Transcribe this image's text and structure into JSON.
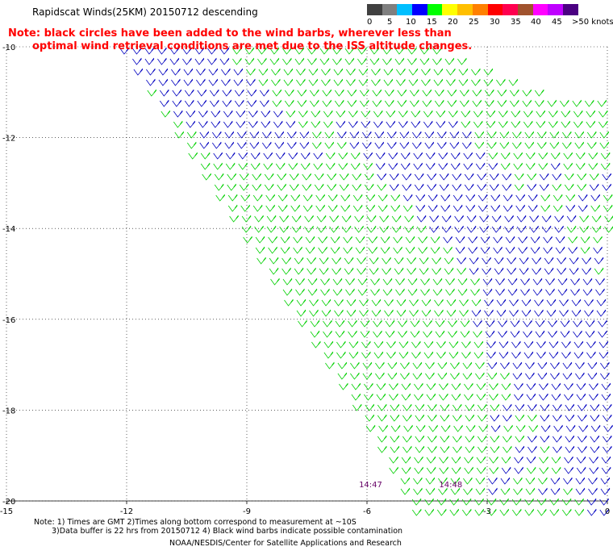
{
  "header": {
    "title": "Rapidscat Winds(25KM) 20150712 descending",
    "note_line1": "Note: black circles have been added to the wind barbs, wherever less than",
    "note_line2": "optimal wind retrieval conditions are met due to the ISS altitude changes."
  },
  "legend": {
    "colors": [
      "#404040",
      "#7f7f7f",
      "#00bfff",
      "#0000ff",
      "#00ff00",
      "#ffff00",
      "#ffbf00",
      "#ff8000",
      "#ff0000",
      "#ff004f",
      "#a0522d",
      "#ff00ff",
      "#bf00ff",
      "#4b0082"
    ],
    "labels": [
      "0",
      "5",
      "10",
      "15",
      "20",
      "25",
      "30",
      "35",
      "40",
      "45",
      ">50 knots"
    ]
  },
  "map": {
    "x_ticks": [
      "-15",
      "-12",
      "-9",
      "-6",
      "-3",
      "0"
    ],
    "x_values": [
      -15,
      -12,
      -9,
      -6,
      -3,
      0
    ],
    "y_ticks": [
      "-10",
      "-12",
      "-14",
      "-16",
      "-18",
      "-20"
    ],
    "y_values": [
      -10,
      -12,
      -14,
      -16,
      -18,
      -20
    ],
    "lon_range": [
      -15,
      0
    ],
    "lat_range": [
      -20,
      -10
    ],
    "time_labels": [
      {
        "text": "14:47",
        "lon": -6.2,
        "lat": -19.7
      },
      {
        "text": "14:48",
        "lon": -4.2,
        "lat": -19.7
      }
    ],
    "colors": {
      "green": "#00d000",
      "blue": "#0000c0",
      "time": "#660066"
    }
  },
  "footer": {
    "line1": "Note: 1) Times are GMT 2)Times along bottom correspond to measurement at ~10S",
    "line2": "3)Data buffer is 22 hrs from 20150712 4) Black wind barbs indicate possible contamination",
    "line3": "NOAA/NESDIS/Center for Satellite Applications and Research"
  }
}
